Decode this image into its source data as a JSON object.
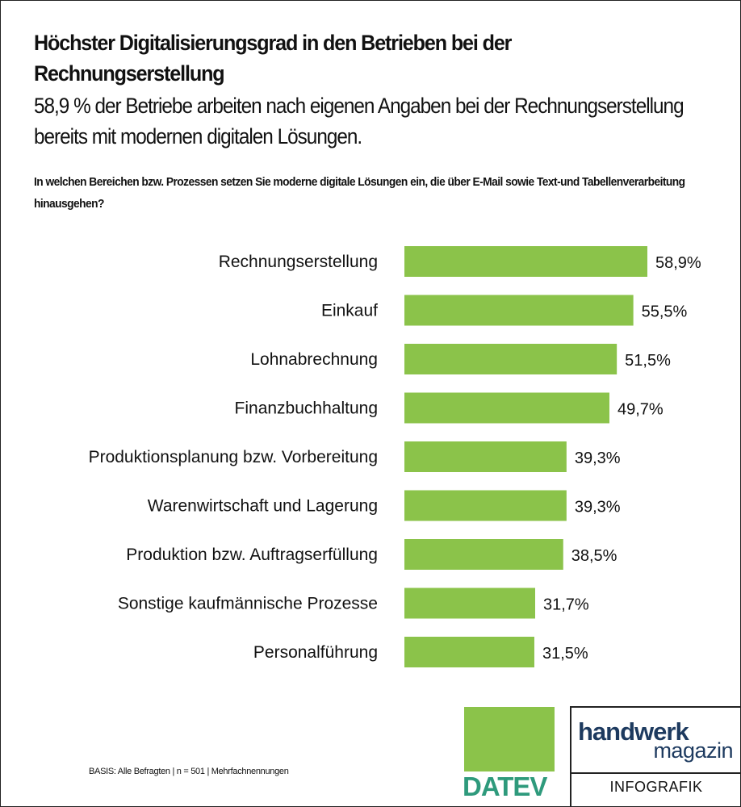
{
  "title": "Höchster Digitalisierungsgrad in den Betrieben bei der Rechnungserstellung",
  "subtitle": "58,9 % der Betriebe arbeiten nach eigenen Angaben bei der Rechnungserstellung bereits mit modernen digitalen Lösungen.",
  "question": "In welchen Bereichen bzw. Prozessen setzen Sie moderne digitale Lösungen ein, die über E-Mail sowie Text-und Tabellenverarbeitung hinausgehen?",
  "basis": "BASIS: Alle Befragten | n = 501 | Mehrfachnennungen",
  "logos": {
    "datev": "DATEV",
    "handwerk": "handwerk",
    "magazin": "magazin",
    "infografik": "INFOGRAFIK"
  },
  "colors": {
    "bar": "#8bc34a",
    "datev_text": "#2e9a7c",
    "handwerk": "#1d3a5f"
  },
  "chart_data": {
    "type": "bar",
    "orientation": "horizontal",
    "categories": [
      "Rechnungserstellung",
      "Einkauf",
      "Lohnabrechnung",
      "Finanzbuchhaltung",
      "Produktionsplanung bzw. Vorbereitung",
      "Warenwirtschaft und Lagerung",
      "Produktion bzw. Auftragserfüllung",
      "Sonstige kaufmännische Prozesse",
      "Personalführung"
    ],
    "values": [
      58.9,
      55.5,
      51.5,
      49.7,
      39.3,
      39.3,
      38.5,
      31.7,
      31.5
    ],
    "value_labels": [
      "58,9%",
      "55,5%",
      "51,5%",
      "49,7%",
      "39,3%",
      "39,3%",
      "38,5%",
      "31,7%",
      "31,5%"
    ],
    "unit": "%",
    "grid": false,
    "axis_visible": false
  }
}
